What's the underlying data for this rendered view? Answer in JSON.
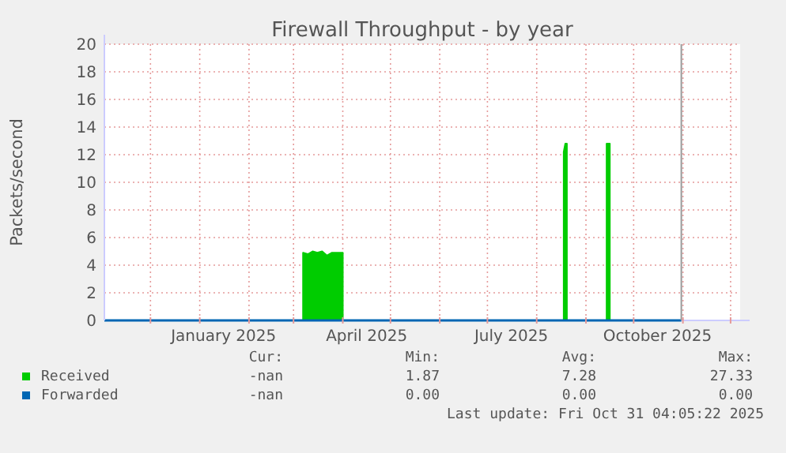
{
  "chart_data": {
    "type": "area",
    "title": "Firewall Throughput - by year",
    "ylabel": "Packets/second",
    "xlim": [
      "2024-11-02",
      "2025-12-07"
    ],
    "ylim": [
      0,
      20
    ],
    "xticks": [
      {
        "value": "2024-12-01",
        "label": null
      },
      {
        "value": "2025-01-01",
        "label": null
      },
      {
        "value": "2025-01-16",
        "label": "January 2025"
      },
      {
        "value": "2025-02-01",
        "label": null
      },
      {
        "value": "2025-03-01",
        "label": null
      },
      {
        "value": "2025-04-01",
        "label": null
      },
      {
        "value": "2025-04-16",
        "label": "April 2025"
      },
      {
        "value": "2025-05-01",
        "label": null
      },
      {
        "value": "2025-06-01",
        "label": null
      },
      {
        "value": "2025-07-01",
        "label": null
      },
      {
        "value": "2025-07-16",
        "label": "July 2025"
      },
      {
        "value": "2025-08-01",
        "label": null
      },
      {
        "value": "2025-09-01",
        "label": null
      },
      {
        "value": "2025-10-01",
        "label": null
      },
      {
        "value": "2025-10-16",
        "label": "October 2025"
      },
      {
        "value": "2025-11-01",
        "label": null
      },
      {
        "value": "2025-12-01",
        "label": null
      }
    ],
    "yticks": [
      0,
      2,
      4,
      6,
      8,
      10,
      12,
      14,
      16,
      18,
      20
    ],
    "grid": true,
    "legend": "bottom",
    "ref_lines": [
      {
        "axis": "x",
        "value": "2025-10-31",
        "color": "#999999"
      }
    ],
    "series": [
      {
        "name": "Received",
        "color": "#00cc00",
        "x": [
          "2025-03-07",
          "2025-03-10",
          "2025-03-13",
          "2025-03-16",
          "2025-03-19",
          "2025-03-22",
          "2025-03-25",
          "2025-03-28",
          "2025-04-01",
          "2025-04-02",
          "2025-08-18",
          "2025-08-19",
          "2025-08-20",
          "2025-08-21",
          "2025-09-14",
          "2025-09-16"
        ],
        "values": [
          4.9,
          4.8,
          5.0,
          4.9,
          5.0,
          4.7,
          4.9,
          4.9,
          4.9,
          null,
          12.2,
          12.8,
          12.8,
          null,
          12.8,
          12.8
        ]
      },
      {
        "name": "Forwarded",
        "type": "line",
        "color": "#0066b3",
        "x": [
          "2024-11-02",
          "2025-10-31"
        ],
        "values": [
          0,
          0
        ]
      }
    ],
    "annotations": [
      "Cur:",
      "Min:",
      "Avg:",
      "Max:",
      "-nan",
      "1.87",
      "7.28",
      "27.33",
      "-nan",
      "0.00",
      "0.00",
      "0.00",
      "Last update: Fri Oct 31 04:05:22 2025"
    ]
  }
}
